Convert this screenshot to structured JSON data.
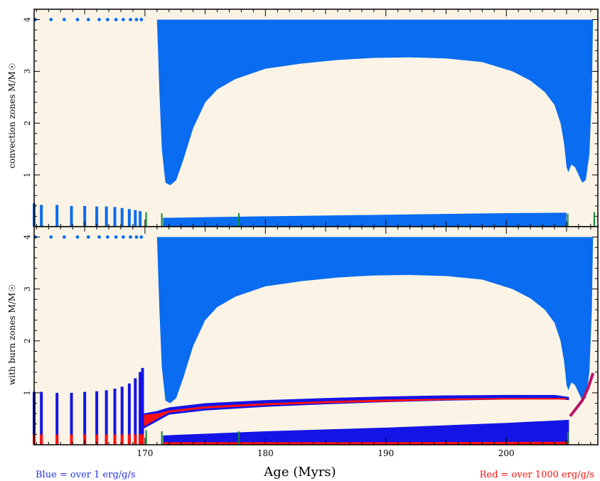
{
  "chart_data": [
    {
      "type": "area",
      "panel": "top",
      "ylabel": "convection zones M/M☉",
      "xlim": [
        160.8,
        207.6
      ],
      "ylim": [
        0,
        4.2
      ],
      "x_ticks": [
        170,
        180,
        190,
        200
      ],
      "y_ticks": [
        1,
        2,
        3,
        4
      ],
      "background": "#fbf4e6",
      "series": [
        {
          "role": "envelope-base",
          "color": "#0a6cf0",
          "points": [
            [
              171.0,
              4.0
            ],
            [
              171.2,
              2.6
            ],
            [
              171.4,
              1.5
            ],
            [
              171.7,
              0.85
            ],
            [
              172.1,
              0.8
            ],
            [
              172.6,
              0.9
            ],
            [
              173.2,
              1.3
            ],
            [
              174.0,
              1.9
            ],
            [
              175.0,
              2.4
            ],
            [
              176.0,
              2.65
            ],
            [
              177.5,
              2.85
            ],
            [
              180.0,
              3.05
            ],
            [
              183.0,
              3.15
            ],
            [
              186.0,
              3.22
            ],
            [
              189.0,
              3.26
            ],
            [
              192.0,
              3.27
            ],
            [
              195.0,
              3.25
            ],
            [
              198.0,
              3.18
            ],
            [
              200.5,
              3.0
            ],
            [
              202.0,
              2.82
            ],
            [
              203.2,
              2.6
            ],
            [
              204.0,
              2.35
            ],
            [
              204.5,
              2.0
            ],
            [
              204.8,
              1.6
            ],
            [
              205.0,
              1.15
            ],
            [
              205.15,
              1.05
            ],
            [
              205.4,
              1.2
            ],
            [
              205.7,
              1.15
            ],
            [
              206.0,
              1.0
            ],
            [
              206.3,
              0.85
            ],
            [
              206.6,
              0.9
            ],
            [
              206.9,
              1.4
            ],
            [
              207.1,
              2.6
            ],
            [
              207.2,
              4.0
            ]
          ]
        },
        {
          "role": "core",
          "color": "#0a6cf0",
          "points": [
            [
              171.5,
              0.17
            ],
            [
              180,
              0.2
            ],
            [
              190,
              0.23
            ],
            [
              200,
              0.26
            ],
            [
              205,
              0.27
            ]
          ]
        }
      ],
      "top_dots_x": [
        160.9,
        162.2,
        163.3,
        164.4,
        165.3,
        166.2,
        166.9,
        167.6,
        168.2,
        168.8,
        169.3,
        169.7
      ],
      "precursor_spikes": [
        [
          160.8,
          0.45
        ],
        [
          161.4,
          0.42
        ],
        [
          162.7,
          0.42
        ],
        [
          163.9,
          0.4
        ],
        [
          165.0,
          0.4
        ],
        [
          166.0,
          0.39
        ],
        [
          166.8,
          0.39
        ],
        [
          167.5,
          0.38
        ],
        [
          168.1,
          0.36
        ],
        [
          168.7,
          0.34
        ],
        [
          169.2,
          0.32
        ],
        [
          169.6,
          0.3
        ]
      ],
      "green_spikes": [
        [
          170.1,
          0.28
        ],
        [
          171.4,
          0.26
        ],
        [
          177.8,
          0.26
        ],
        [
          205.1,
          0.25
        ],
        [
          207.3,
          0.28
        ]
      ]
    },
    {
      "type": "area",
      "panel": "bottom",
      "ylabel": "with burn zones M/M☉",
      "xlabel": "Age (Myrs)",
      "xlim": [
        160.8,
        207.6
      ],
      "ylim": [
        0,
        4.2
      ],
      "x_ticks": [
        170,
        180,
        190,
        200
      ],
      "y_ticks": [
        1,
        2,
        3,
        4
      ],
      "background": "#fbf4e6",
      "series": [
        {
          "role": "envelope-base",
          "color": "#0a6cf0",
          "points": [
            [
              171.0,
              4.0
            ],
            [
              171.2,
              2.6
            ],
            [
              171.4,
              1.5
            ],
            [
              171.7,
              0.85
            ],
            [
              172.1,
              0.8
            ],
            [
              172.6,
              0.9
            ],
            [
              173.2,
              1.3
            ],
            [
              174.0,
              1.9
            ],
            [
              175.0,
              2.4
            ],
            [
              176.0,
              2.65
            ],
            [
              177.5,
              2.85
            ],
            [
              180.0,
              3.05
            ],
            [
              183.0,
              3.15
            ],
            [
              186.0,
              3.22
            ],
            [
              189.0,
              3.26
            ],
            [
              192.0,
              3.27
            ],
            [
              195.0,
              3.25
            ],
            [
              198.0,
              3.18
            ],
            [
              200.5,
              3.0
            ],
            [
              202.0,
              2.82
            ],
            [
              203.2,
              2.6
            ],
            [
              204.0,
              2.35
            ],
            [
              204.5,
              2.0
            ],
            [
              204.8,
              1.6
            ],
            [
              205.0,
              1.15
            ],
            [
              205.15,
              1.05
            ],
            [
              205.4,
              1.2
            ],
            [
              205.7,
              1.15
            ],
            [
              206.0,
              1.0
            ],
            [
              206.3,
              0.85
            ],
            [
              206.6,
              0.9
            ],
            [
              206.9,
              1.4
            ],
            [
              207.1,
              2.6
            ],
            [
              207.2,
              4.0
            ]
          ]
        },
        {
          "role": "burn-shell-blue",
          "color": "#1414e6",
          "upper": [
            [
              169.8,
              0.6
            ],
            [
              171.0,
              0.65
            ],
            [
              172.0,
              0.72
            ],
            [
              175.0,
              0.8
            ],
            [
              180.0,
              0.86
            ],
            [
              185.0,
              0.9
            ],
            [
              190.0,
              0.93
            ],
            [
              195.0,
              0.95
            ],
            [
              200.0,
              0.96
            ],
            [
              204.0,
              0.96
            ],
            [
              205.2,
              0.92
            ]
          ],
          "lower": [
            [
              169.8,
              0.3
            ],
            [
              171.0,
              0.45
            ],
            [
              172.0,
              0.58
            ],
            [
              175.0,
              0.66
            ],
            [
              180.0,
              0.73
            ],
            [
              185.0,
              0.78
            ],
            [
              190.0,
              0.82
            ],
            [
              195.0,
              0.85
            ],
            [
              200.0,
              0.87
            ],
            [
              204.0,
              0.88
            ],
            [
              205.2,
              0.86
            ]
          ]
        },
        {
          "role": "burn-shell-red",
          "color": "#ff1010",
          "upper": [
            [
              169.9,
              0.58
            ],
            [
              171.0,
              0.6
            ],
            [
              172.0,
              0.66
            ],
            [
              175.0,
              0.74
            ],
            [
              180.0,
              0.8
            ],
            [
              185.0,
              0.84
            ],
            [
              190.0,
              0.87
            ],
            [
              195.0,
              0.89
            ],
            [
              200.0,
              0.9
            ],
            [
              205.0,
              0.9
            ]
          ],
          "lower": [
            [
              169.9,
              0.35
            ],
            [
              171.0,
              0.5
            ],
            [
              172.0,
              0.62
            ],
            [
              175.0,
              0.7
            ],
            [
              180.0,
              0.76
            ],
            [
              185.0,
              0.8
            ],
            [
              190.0,
              0.83
            ],
            [
              195.0,
              0.86
            ],
            [
              200.0,
              0.87
            ],
            [
              205.0,
              0.87
            ]
          ]
        },
        {
          "role": "core-blue",
          "color": "#1414e6",
          "upper": [
            [
              171.5,
              0.18
            ],
            [
              180,
              0.26
            ],
            [
              190,
              0.33
            ],
            [
              200,
              0.42
            ],
            [
              205.2,
              0.48
            ]
          ],
          "lower": [
            [
              171.5,
              0.0
            ],
            [
              205.2,
              0.0
            ]
          ]
        },
        {
          "role": "core-red",
          "color": "#ff1010",
          "upper": [
            [
              171.5,
              0.05
            ],
            [
              190,
              0.05
            ],
            [
              205.2,
              0.06
            ]
          ],
          "lower": [
            [
              171.5,
              0.0
            ],
            [
              205.2,
              0.0
            ]
          ]
        },
        {
          "role": "late-burn",
          "color": "#b8126a",
          "points": [
            [
              205.3,
              0.55
            ],
            [
              205.8,
              0.7
            ],
            [
              206.3,
              0.85
            ],
            [
              206.8,
              1.1
            ],
            [
              207.2,
              1.38
            ]
          ]
        }
      ],
      "top_dots_x": [
        160.9,
        162.2,
        163.3,
        164.4,
        165.3,
        166.2,
        166.9,
        167.6,
        168.2,
        168.8,
        169.3,
        169.7
      ],
      "precursor_spikes": [
        [
          160.8,
          1.02
        ],
        [
          161.4,
          1.02
        ],
        [
          162.7,
          1.0
        ],
        [
          163.9,
          1.0
        ],
        [
          165.0,
          1.02
        ],
        [
          166.0,
          1.03
        ],
        [
          166.8,
          1.05
        ],
        [
          167.5,
          1.08
        ],
        [
          168.1,
          1.12
        ],
        [
          168.7,
          1.18
        ],
        [
          169.2,
          1.28
        ],
        [
          169.6,
          1.4
        ],
        [
          169.8,
          1.48
        ]
      ],
      "red_base_height": 0.2,
      "green_spikes": [
        [
          170.1,
          0.28
        ],
        [
          171.4,
          0.26
        ],
        [
          177.8,
          0.26
        ],
        [
          205.1,
          0.25
        ]
      ]
    }
  ],
  "notes": {
    "left": "Blue = over 1 erg/g/s",
    "right": "Red = over 1000 erg/g/s"
  },
  "colors": {
    "envelope": "#0a6cf0",
    "blue_burn": "#1414e6",
    "red_burn": "#ff1010",
    "green": "#0a8a2a",
    "late_burn": "#b8126a",
    "background": "#fbf4e6"
  }
}
